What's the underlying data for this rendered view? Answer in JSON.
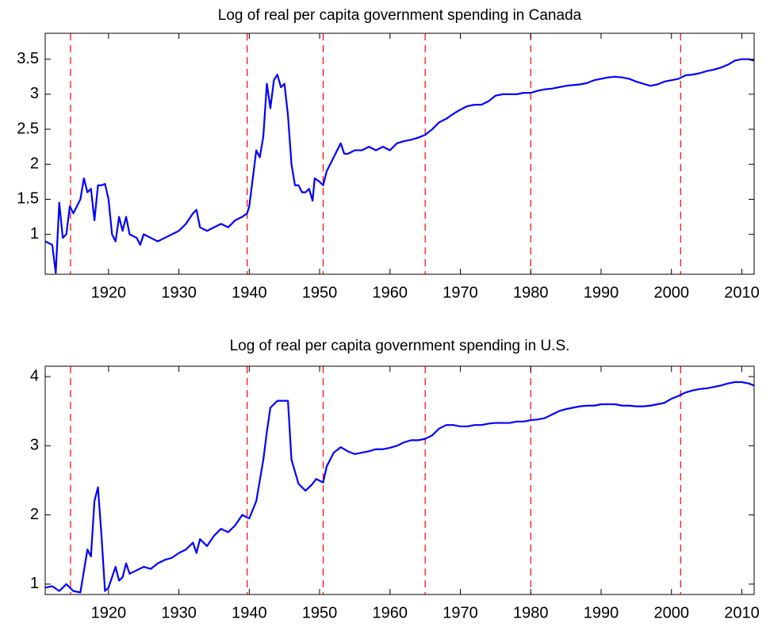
{
  "chart_data": [
    {
      "type": "line",
      "title": "Log of real per capita government spending in Canada",
      "x": [
        1911,
        1912,
        1912.5,
        1913,
        1913.5,
        1914,
        1914.5,
        1915,
        1916,
        1916.5,
        1917,
        1917.5,
        1918,
        1918.5,
        1919,
        1919.5,
        1920,
        1920.5,
        1921,
        1921.5,
        1922,
        1922.5,
        1923,
        1924,
        1924.5,
        1925,
        1926,
        1927,
        1928,
        1929,
        1930,
        1931,
        1932,
        1932.5,
        1933,
        1934,
        1935,
        1936,
        1937,
        1938,
        1939,
        1939.7,
        1940,
        1940.5,
        1941,
        1941.5,
        1942,
        1942.5,
        1943,
        1943.5,
        1944,
        1944.5,
        1945,
        1945.5,
        1946,
        1946.5,
        1947,
        1947.5,
        1948,
        1948.5,
        1949,
        1949.3,
        1950,
        1950.5,
        1951,
        1952,
        1953,
        1953.5,
        1954,
        1955,
        1956,
        1957,
        1958,
        1959,
        1960,
        1961,
        1962,
        1963,
        1964,
        1965,
        1966,
        1967,
        1968,
        1969,
        1970,
        1971,
        1972,
        1973,
        1974,
        1975,
        1976,
        1977,
        1978,
        1979,
        1980,
        1981,
        1982,
        1983,
        1984,
        1985,
        1986,
        1987,
        1988,
        1989,
        1990,
        1991,
        1992,
        1993,
        1994,
        1995,
        1996,
        1997,
        1998,
        1999,
        2000,
        2001,
        2002,
        2003,
        2004,
        2005,
        2006,
        2007,
        2008,
        2009,
        2010,
        2011,
        2011.75
      ],
      "values": [
        0.9,
        0.85,
        0.45,
        1.45,
        0.95,
        1.0,
        1.4,
        1.3,
        1.5,
        1.8,
        1.6,
        1.65,
        1.2,
        1.7,
        1.7,
        1.72,
        1.5,
        1.0,
        0.9,
        1.25,
        1.05,
        1.25,
        1.0,
        0.95,
        0.85,
        1.0,
        0.95,
        0.9,
        0.95,
        1.0,
        1.05,
        1.15,
        1.3,
        1.35,
        1.1,
        1.05,
        1.1,
        1.15,
        1.1,
        1.2,
        1.25,
        1.3,
        1.4,
        1.8,
        2.2,
        2.1,
        2.4,
        3.15,
        2.8,
        3.2,
        3.28,
        3.1,
        3.15,
        2.7,
        2.0,
        1.7,
        1.7,
        1.6,
        1.6,
        1.65,
        1.48,
        1.8,
        1.75,
        1.7,
        1.9,
        2.1,
        2.3,
        2.15,
        2.15,
        2.2,
        2.2,
        2.25,
        2.2,
        2.25,
        2.2,
        2.3,
        2.33,
        2.35,
        2.38,
        2.42,
        2.5,
        2.6,
        2.65,
        2.72,
        2.78,
        2.83,
        2.85,
        2.85,
        2.9,
        2.98,
        3.0,
        3.0,
        3.0,
        3.02,
        3.02,
        3.05,
        3.07,
        3.08,
        3.1,
        3.12,
        3.13,
        3.14,
        3.16,
        3.2,
        3.22,
        3.24,
        3.25,
        3.24,
        3.22,
        3.18,
        3.15,
        3.12,
        3.14,
        3.18,
        3.2,
        3.22,
        3.27,
        3.28,
        3.3,
        3.33,
        3.35,
        3.38,
        3.42,
        3.48,
        3.5,
        3.5,
        3.48
      ],
      "color": "#0000ff",
      "xlim": [
        1911,
        2011.75
      ],
      "xticks": [
        1920,
        1930,
        1940,
        1950,
        1960,
        1970,
        1980,
        1990,
        2000,
        2010
      ],
      "ylim": [
        0.43,
        3.87
      ],
      "yticks": [
        1,
        1.5,
        2,
        2.5,
        3,
        3.5
      ],
      "vlines": [
        1914.6,
        1939.7,
        1950.5,
        1965,
        1980,
        2001.3
      ],
      "vline_color": "#ff0000"
    },
    {
      "type": "line",
      "title": "Log of real per capita government spending in U.S.",
      "x": [
        1911,
        1912,
        1913,
        1914,
        1914.5,
        1915,
        1916,
        1917,
        1917.5,
        1918,
        1918.5,
        1919,
        1919.5,
        1920,
        1921,
        1921.5,
        1922,
        1922.5,
        1923,
        1924,
        1925,
        1926,
        1927,
        1928,
        1929,
        1930,
        1931,
        1932,
        1932.5,
        1933,
        1934,
        1935,
        1936,
        1937,
        1938,
        1939,
        1940,
        1941,
        1942,
        1942.5,
        1943,
        1944,
        1945.5,
        1946,
        1947,
        1948,
        1949,
        1949.5,
        1950.5,
        1951,
        1952,
        1953,
        1954,
        1955,
        1956,
        1957,
        1958,
        1959,
        1960,
        1961,
        1962,
        1963,
        1964,
        1965,
        1966,
        1967,
        1968,
        1969,
        1970,
        1971,
        1972,
        1973,
        1974,
        1975,
        1976,
        1977,
        1978,
        1979,
        1980,
        1981,
        1982,
        1983,
        1984,
        1985,
        1986,
        1987,
        1988,
        1989,
        1990,
        1991,
        1992,
        1993,
        1994,
        1995,
        1996,
        1997,
        1998,
        1999,
        2000,
        2001,
        2002,
        2003,
        2004,
        2005,
        2006,
        2007,
        2008,
        2009,
        2010,
        2011,
        2011.75
      ],
      "values": [
        0.95,
        0.97,
        0.9,
        1.0,
        0.95,
        0.9,
        0.88,
        1.5,
        1.4,
        2.2,
        2.4,
        1.7,
        0.9,
        0.95,
        1.25,
        1.05,
        1.1,
        1.3,
        1.15,
        1.2,
        1.25,
        1.22,
        1.3,
        1.35,
        1.38,
        1.45,
        1.5,
        1.6,
        1.45,
        1.65,
        1.55,
        1.7,
        1.8,
        1.75,
        1.85,
        2.0,
        1.95,
        2.2,
        2.8,
        3.2,
        3.55,
        3.65,
        3.65,
        2.8,
        2.45,
        2.35,
        2.45,
        2.52,
        2.47,
        2.7,
        2.9,
        2.98,
        2.92,
        2.88,
        2.9,
        2.92,
        2.95,
        2.95,
        2.97,
        3.0,
        3.05,
        3.08,
        3.08,
        3.1,
        3.15,
        3.25,
        3.3,
        3.3,
        3.28,
        3.28,
        3.3,
        3.3,
        3.32,
        3.33,
        3.33,
        3.33,
        3.35,
        3.35,
        3.37,
        3.38,
        3.4,
        3.45,
        3.5,
        3.53,
        3.55,
        3.57,
        3.58,
        3.58,
        3.6,
        3.6,
        3.6,
        3.58,
        3.58,
        3.57,
        3.57,
        3.58,
        3.6,
        3.62,
        3.68,
        3.72,
        3.77,
        3.8,
        3.82,
        3.83,
        3.85,
        3.87,
        3.9,
        3.92,
        3.92,
        3.9,
        3.87
      ],
      "color": "#0000ff",
      "xlim": [
        1911,
        2011.75
      ],
      "xticks": [
        1920,
        1930,
        1940,
        1950,
        1960,
        1970,
        1980,
        1990,
        2000,
        2010
      ],
      "ylim": [
        0.85,
        4.15
      ],
      "yticks": [
        1,
        2,
        3,
        4
      ],
      "vlines": [
        1914.6,
        1939.7,
        1950.5,
        1965,
        1980,
        2001.3
      ],
      "vline_color": "#ff0000"
    }
  ]
}
